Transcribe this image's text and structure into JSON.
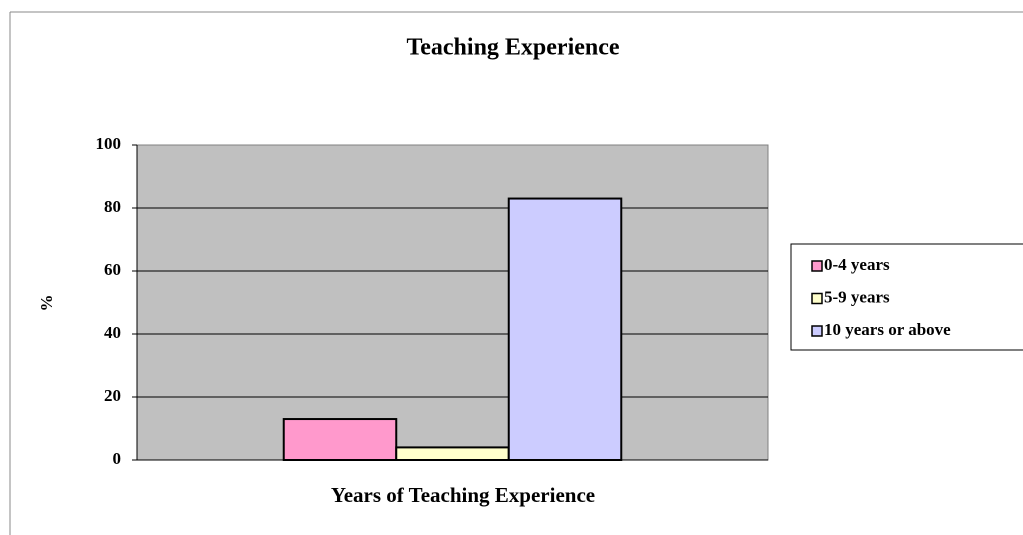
{
  "chart_data": {
    "type": "bar",
    "title": "Teaching Experience",
    "x_label": "Years of Teaching Experience",
    "y_label": "%",
    "categories": [
      null
    ],
    "series": [
      {
        "name": "0-4 years",
        "color": "#ff99cc",
        "values": [
          13
        ]
      },
      {
        "name": "5-9 years",
        "color": "#ffffcc",
        "values": [
          4
        ]
      },
      {
        "name": "10 years or above",
        "color": "#ccccff",
        "values": [
          83
        ]
      }
    ],
    "ylim": [
      0,
      100
    ],
    "yticks": [
      0,
      20,
      40,
      60,
      80,
      100
    ],
    "grid": true,
    "legend": "right"
  }
}
